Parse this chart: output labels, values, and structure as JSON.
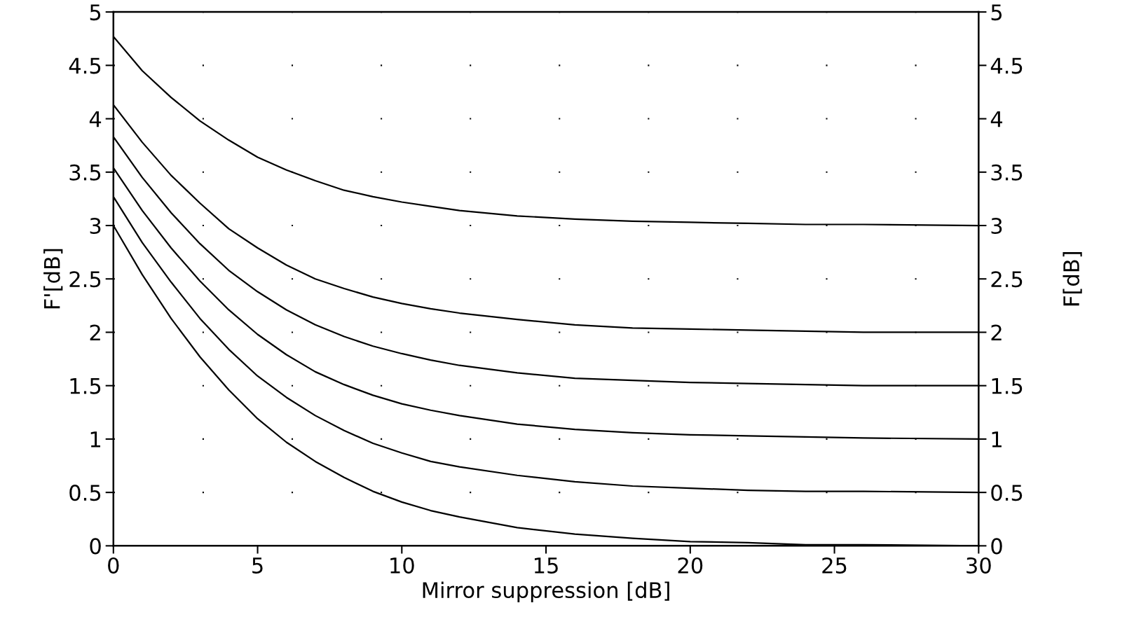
{
  "chart_data": {
    "type": "line",
    "xlabel": "Mirror suppression [dB]",
    "ylabel": "F'[dB]",
    "y2label": "F[dB]",
    "x": [
      0,
      1,
      2,
      3,
      4,
      5,
      6,
      7,
      8,
      9,
      10,
      11,
      12,
      14,
      16,
      18,
      20,
      22,
      24,
      26,
      30
    ],
    "series": [
      {
        "color": "#000000",
        "values": [
          4.77,
          4.45,
          4.2,
          3.98,
          3.8,
          3.64,
          3.52,
          3.42,
          3.33,
          3.27,
          3.22,
          3.18,
          3.14,
          3.09,
          3.06,
          3.04,
          3.03,
          3.02,
          3.01,
          3.01,
          3.0
        ]
      },
      {
        "color": "#000000",
        "values": [
          4.13,
          3.78,
          3.47,
          3.21,
          2.97,
          2.79,
          2.63,
          2.5,
          2.41,
          2.33,
          2.27,
          2.22,
          2.18,
          2.12,
          2.07,
          2.04,
          2.03,
          2.02,
          2.01,
          2.0,
          2.0
        ]
      },
      {
        "color": "#000000",
        "values": [
          3.83,
          3.45,
          3.12,
          2.83,
          2.58,
          2.38,
          2.21,
          2.07,
          1.96,
          1.87,
          1.8,
          1.74,
          1.69,
          1.62,
          1.57,
          1.55,
          1.53,
          1.52,
          1.51,
          1.5,
          1.5
        ]
      },
      {
        "color": "#000000",
        "values": [
          3.54,
          3.14,
          2.79,
          2.48,
          2.21,
          1.98,
          1.79,
          1.63,
          1.51,
          1.41,
          1.33,
          1.27,
          1.22,
          1.14,
          1.09,
          1.06,
          1.04,
          1.03,
          1.02,
          1.01,
          1.0
        ]
      },
      {
        "color": "#000000",
        "values": [
          3.27,
          2.84,
          2.47,
          2.13,
          1.84,
          1.59,
          1.39,
          1.22,
          1.08,
          0.96,
          0.87,
          0.79,
          0.74,
          0.66,
          0.6,
          0.56,
          0.54,
          0.52,
          0.51,
          0.51,
          0.5
        ]
      },
      {
        "color": "#000000",
        "values": [
          3.0,
          2.54,
          2.13,
          1.77,
          1.46,
          1.19,
          0.97,
          0.79,
          0.64,
          0.51,
          0.41,
          0.33,
          0.27,
          0.17,
          0.11,
          0.07,
          0.04,
          0.03,
          0.01,
          0.01,
          0.0
        ]
      }
    ],
    "xlim": [
      0,
      30
    ],
    "xticks": [
      0,
      5,
      10,
      15,
      20,
      25,
      30
    ],
    "ylim": [
      0,
      5
    ],
    "yticks": [
      0,
      0.5,
      1,
      1.5,
      2,
      2.5,
      3,
      3.5,
      4,
      4.5,
      5
    ],
    "y2lim": [
      0,
      5
    ],
    "y2ticks": [
      0,
      0.5,
      1,
      1.5,
      2,
      2.5,
      3,
      3.5,
      4,
      4.5,
      5
    ],
    "grid": "y",
    "line_style": "solid",
    "marker": "none"
  }
}
